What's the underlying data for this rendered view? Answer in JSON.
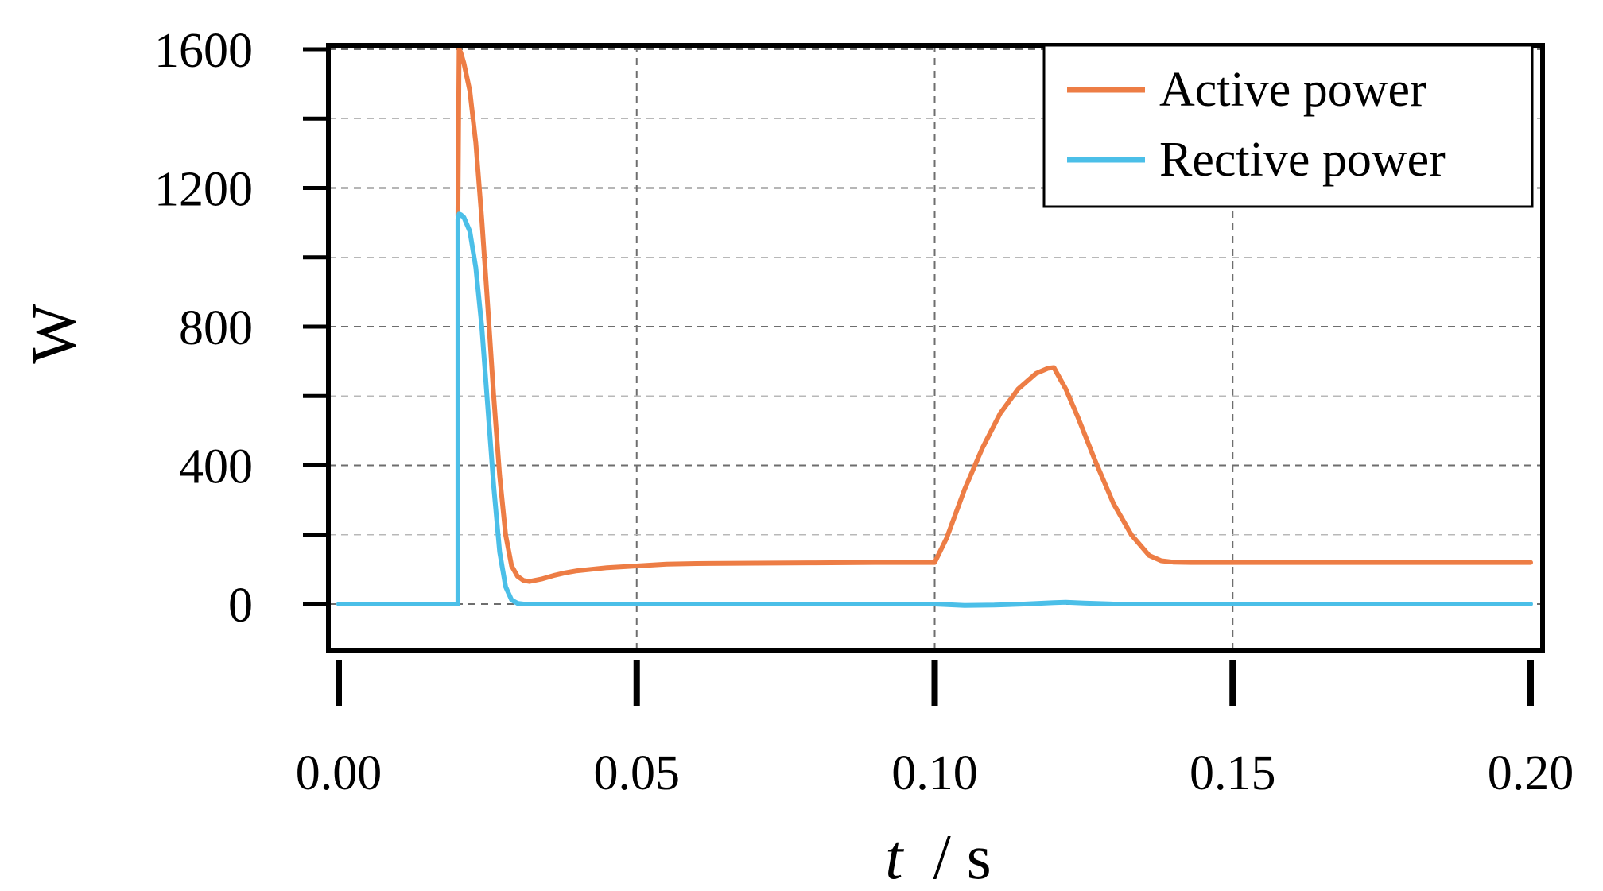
{
  "chart_data": {
    "type": "line",
    "title": "",
    "xlabel_var": "t",
    "xlabel_unit": "/ s",
    "ylabel": "W",
    "xlim": [
      0.0,
      0.2
    ],
    "ylim": [
      -130,
      1620
    ],
    "xticks": [
      0.0,
      0.05,
      0.1,
      0.15,
      0.2
    ],
    "xtick_labels": [
      "0.00",
      "0.05",
      "0.10",
      "0.15",
      "0.20"
    ],
    "yticks": [
      0,
      400,
      800,
      1200,
      1600
    ],
    "ytick_labels": [
      "0",
      "400",
      "800",
      "1200",
      "1600"
    ],
    "yminor_ticks": [
      200,
      600,
      1000,
      1400
    ],
    "grid": true,
    "legend_position": "top-right",
    "series": [
      {
        "name": "Active power",
        "color": "#ED7D45",
        "x": [
          0.0,
          0.02,
          0.02,
          0.0202,
          0.0205,
          0.021,
          0.022,
          0.023,
          0.024,
          0.025,
          0.026,
          0.027,
          0.028,
          0.029,
          0.03,
          0.031,
          0.032,
          0.034,
          0.036,
          0.038,
          0.04,
          0.045,
          0.05,
          0.055,
          0.06,
          0.07,
          0.08,
          0.09,
          0.1,
          0.102,
          0.105,
          0.108,
          0.111,
          0.114,
          0.117,
          0.119,
          0.12,
          0.122,
          0.124,
          0.127,
          0.13,
          0.133,
          0.136,
          0.138,
          0.14,
          0.143,
          0.146,
          0.15,
          0.16,
          0.17,
          0.18,
          0.19,
          0.2
        ],
        "y": [
          null,
          null,
          1120,
          1600,
          1590,
          1560,
          1480,
          1330,
          1110,
          860,
          600,
          370,
          200,
          110,
          80,
          68,
          65,
          72,
          82,
          90,
          96,
          105,
          110,
          115,
          117,
          118,
          119,
          120,
          120,
          190,
          330,
          450,
          550,
          620,
          665,
          680,
          682,
          620,
          540,
          410,
          290,
          200,
          140,
          125,
          121,
          120,
          120,
          120,
          120,
          120,
          120,
          120,
          120
        ]
      },
      {
        "name": "Rective power",
        "color": "#4BBFE8",
        "x": [
          0.0,
          0.02,
          0.02,
          0.0202,
          0.0205,
          0.021,
          0.022,
          0.023,
          0.024,
          0.025,
          0.026,
          0.027,
          0.028,
          0.029,
          0.03,
          0.031,
          0.04,
          0.05,
          0.06,
          0.08,
          0.1,
          0.105,
          0.11,
          0.115,
          0.12,
          0.122,
          0.125,
          0.13,
          0.135,
          0.15,
          0.17,
          0.2
        ],
        "y": [
          0,
          0,
          1110,
          1125,
          1123,
          1115,
          1075,
          970,
          800,
          570,
          340,
          150,
          50,
          12,
          2,
          0,
          0,
          0,
          0,
          0,
          0,
          -4,
          -3,
          0,
          4,
          5,
          3,
          0,
          0,
          0,
          0,
          0
        ]
      }
    ]
  }
}
